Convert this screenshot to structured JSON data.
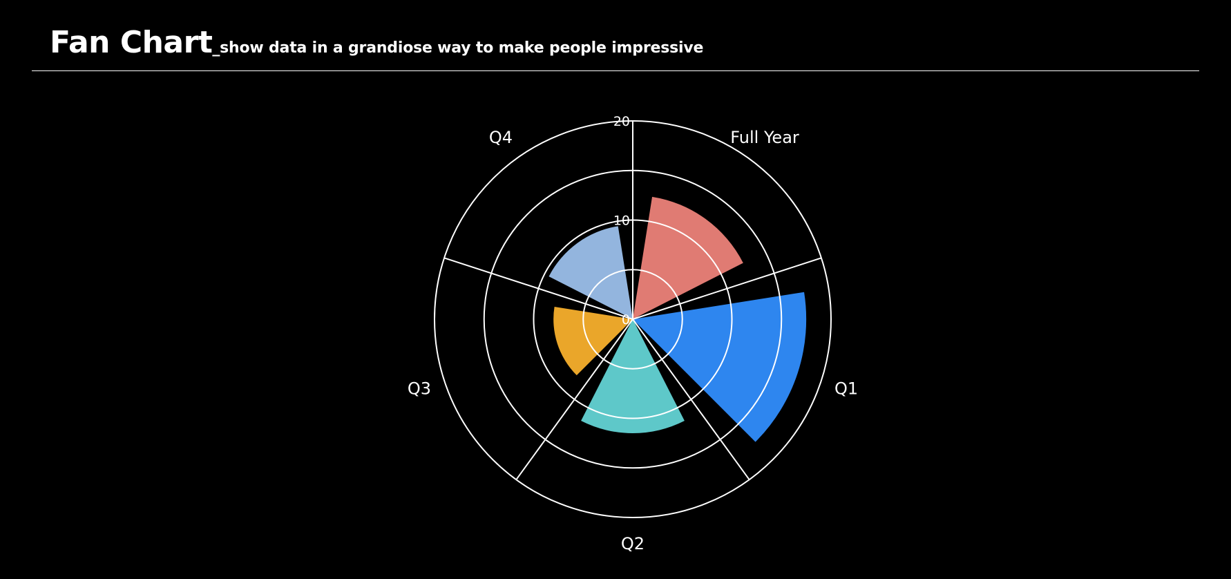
{
  "header": {
    "title": "Fan Chart",
    "subtitle": "_show data in a grandiose way to make people impressive"
  },
  "chart_data": {
    "type": "polar-bar",
    "categories": [
      "Full Year",
      "Q1",
      "Q2",
      "Q3",
      "Q4"
    ],
    "values": [
      12.5,
      17.5,
      11.5,
      8.0,
      9.5
    ],
    "colors": [
      "#e07b73",
      "#2e86ef",
      "#5ec8c9",
      "#eaa62a",
      "#93b5de"
    ],
    "radial_axis": {
      "range": [
        0,
        20
      ],
      "ticks": [
        "0",
        "10",
        "20"
      ],
      "tick_values": [
        0,
        10,
        20
      ],
      "gridlines": [
        0,
        5,
        10,
        15,
        20
      ]
    },
    "legend": "none",
    "grid": true
  }
}
